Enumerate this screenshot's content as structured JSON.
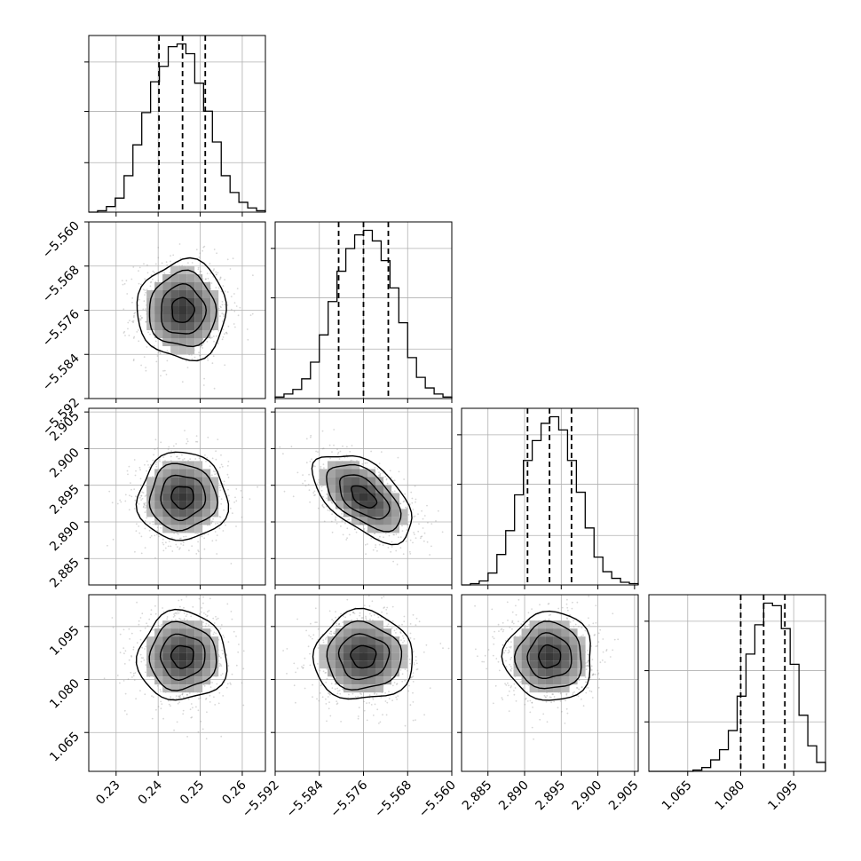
{
  "chart_data": {
    "type": "corner",
    "grid": true,
    "colors": {
      "hist_line": "#000000",
      "scatter": "#8c8c8c",
      "grid": "#b0b0b0",
      "quantile_line": "#000000"
    },
    "parameters": [
      {
        "range": [
          0.2235,
          0.2655
        ],
        "ticks": [
          0.23,
          0.24,
          0.25,
          0.26
        ],
        "tick_labels": [
          "0.23",
          "0.24",
          "0.25",
          "0.26"
        ],
        "quantiles": [
          0.2402,
          0.2458,
          0.2512
        ],
        "mean": 0.2458,
        "sd": 0.0053,
        "histogram": [
          0,
          1,
          4,
          10,
          26,
          48,
          71,
          93,
          104,
          118,
          120,
          113,
          92,
          72,
          50,
          26,
          14,
          7,
          3,
          1
        ]
      },
      {
        "range": [
          -5.592,
          -5.56
        ],
        "ticks": [
          -5.592,
          -5.584,
          -5.576,
          -5.568,
          -5.56
        ],
        "tick_labels": [
          "−5.592",
          "−5.584",
          "−5.576",
          "−5.568",
          "−5.560"
        ],
        "quantiles": [
          -5.5805,
          -5.576,
          -5.5715
        ],
        "mean": -5.576,
        "sd": 0.0045,
        "histogram": [
          1,
          3,
          6,
          13,
          24,
          42,
          64,
          84,
          99,
          108,
          111,
          104,
          91,
          73,
          50,
          27,
          14,
          7,
          3,
          1
        ]
      },
      {
        "range": [
          2.8814,
          2.9055
        ],
        "ticks": [
          2.885,
          2.89,
          2.895,
          2.9,
          2.905
        ],
        "tick_labels": [
          "2.885",
          "2.890",
          "2.895",
          "2.900",
          "2.905"
        ],
        "quantiles": [
          2.8904,
          2.8934,
          2.8964
        ],
        "mean": 2.8934,
        "sd": 0.003,
        "histogram": [
          0,
          1,
          3,
          9,
          23,
          41,
          68,
          94,
          109,
          122,
          127,
          117,
          94,
          70,
          43,
          21,
          10,
          5,
          2,
          1
        ]
      },
      {
        "range": [
          1.054,
          1.104
        ],
        "ticks": [
          1.065,
          1.08,
          1.095
        ],
        "tick_labels": [
          "1.065",
          "1.080",
          "1.095"
        ],
        "quantiles": [
          1.08,
          1.0865,
          1.0925
        ],
        "mean": 1.0865,
        "sd": 0.0063,
        "histogram": [
          0,
          0,
          0,
          0,
          0,
          1,
          3,
          9,
          17,
          32,
          59,
          92,
          115,
          132,
          130,
          112,
          84,
          44,
          20,
          7
        ]
      }
    ],
    "correlations": {
      "1-0": 0.0,
      "2-0": 0.0,
      "2-1": -0.55,
      "3-0": 0.0,
      "3-1": 0.0,
      "3-2": 0.0
    }
  }
}
